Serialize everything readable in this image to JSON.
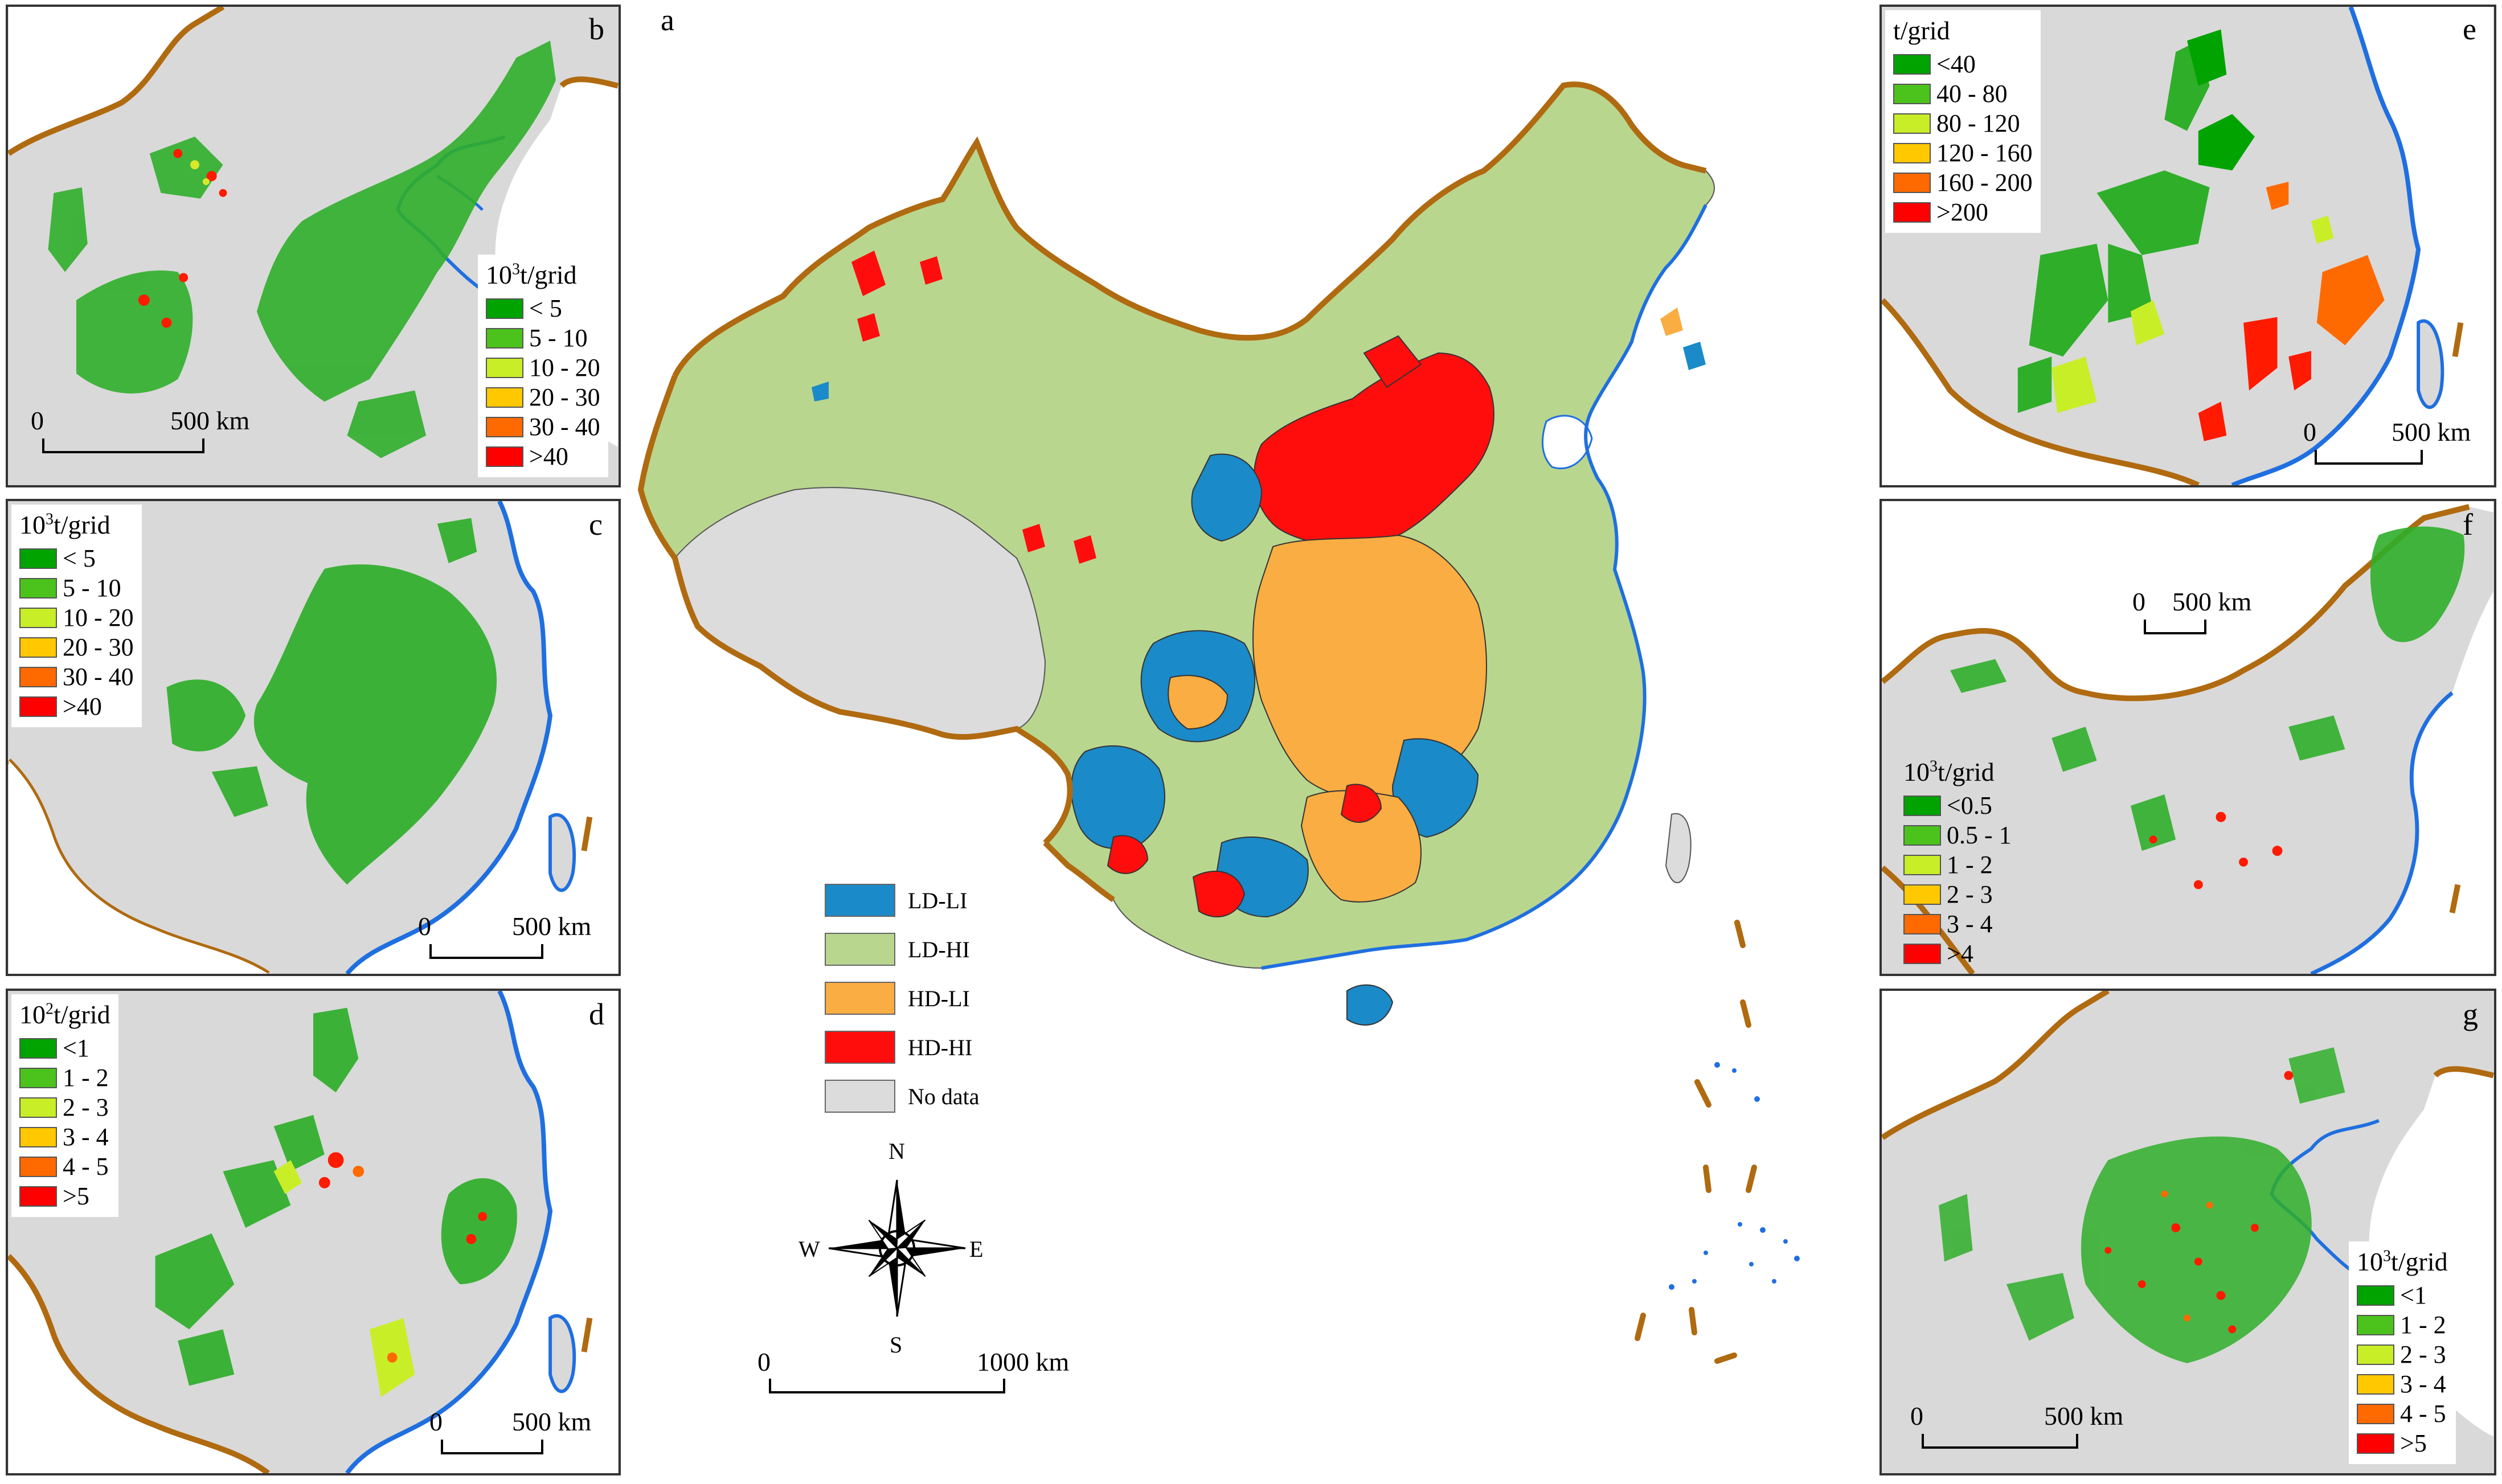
{
  "main": {
    "label": "a",
    "legend": [
      {
        "label": "LD-LI",
        "color": "#1a8ac8"
      },
      {
        "label": "LD-HI",
        "color": "#b9d68f"
      },
      {
        "label": "HD-LI",
        "color": "#f9ad42"
      },
      {
        "label": "HD-HI",
        "color": "#ff0d0d"
      },
      {
        "label": "No data",
        "color": "#dcdcdc"
      }
    ],
    "scale": {
      "start": "0",
      "end": "1000 km"
    },
    "compass": {
      "n": "N",
      "s": "S",
      "e": "E",
      "w": "W"
    }
  },
  "panels": {
    "b": {
      "label": "b",
      "unit_base": "10",
      "unit_exp": "3",
      "unit_rest": "t/grid",
      "classes": [
        "< 5",
        " 5 - 10",
        "10 - 20",
        "20 - 30",
        "30 - 40",
        ">40"
      ],
      "scale": {
        "start": "0",
        "end": "500 km"
      }
    },
    "c": {
      "label": "c",
      "unit_base": "10",
      "unit_exp": "3",
      "unit_rest": "t/grid",
      "classes": [
        "< 5",
        " 5 - 10",
        "10 - 20",
        "20 - 30",
        "30 - 40",
        ">40"
      ],
      "scale": {
        "start": "0",
        "end": "500 km"
      }
    },
    "d": {
      "label": "d",
      "unit_base": "10",
      "unit_exp": "2",
      "unit_rest": "t/grid",
      "classes": [
        "<1",
        "1 - 2",
        "2 - 3",
        "3 - 4",
        "4 - 5",
        ">5"
      ],
      "scale": {
        "start": "0",
        "end": "500 km"
      }
    },
    "e": {
      "label": "e",
      "unit_plain": "t/grid",
      "classes": [
        "<40",
        "40 - 80",
        "80 - 120",
        "120 - 160",
        "160 - 200",
        ">200"
      ],
      "scale": {
        "start": "0",
        "end": "500 km"
      }
    },
    "f": {
      "label": "f",
      "unit_base": "10",
      "unit_exp": "3",
      "unit_rest": "t/grid",
      "classes": [
        "<0.5",
        "0.5 - 1",
        "1 - 2",
        "2 - 3",
        "3 - 4",
        ">4"
      ],
      "scale": {
        "start": "0",
        "end": "500 km"
      }
    },
    "g": {
      "label": "g",
      "unit_base": "10",
      "unit_exp": "3",
      "unit_rest": "t/grid",
      "classes": [
        "<1",
        "1 - 2",
        "2 - 3",
        "3 - 4",
        "4 - 5",
        ">5"
      ],
      "scale": {
        "start": "0",
        "end": "500 km"
      }
    }
  },
  "class_colors": [
    "#00a300",
    "#4cc31c",
    "#c8ee28",
    "#ffc800",
    "#ff6a00",
    "#ff0000"
  ],
  "colors": {
    "coast": "#1f6fe0",
    "border": "#b06a10",
    "land_gray": "#d9d9d9"
  }
}
